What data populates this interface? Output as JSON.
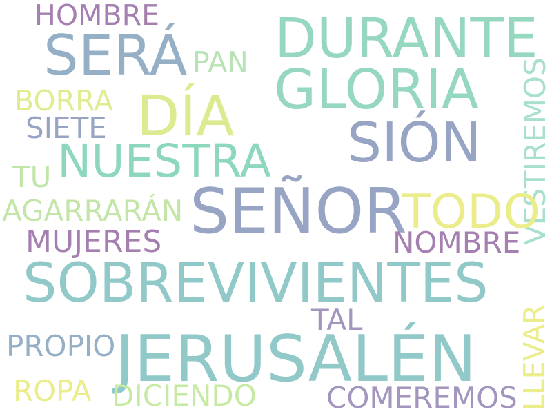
{
  "words": {
    "hombre": {
      "text": "HOMBRE",
      "color": "#a57fb0"
    },
    "sera": {
      "text": "SERÁ",
      "color": "#95b0c6"
    },
    "durante": {
      "text": "DURANTE",
      "color": "#96d8bf"
    },
    "pan": {
      "text": "PAN",
      "color": "#b9e3b7"
    },
    "gloria": {
      "text": "GLORIA",
      "color": "#96d8bf"
    },
    "vestiremos": {
      "text": "VESTIREMOS",
      "color": "#a9e0cd"
    },
    "borra": {
      "text": "BORRA",
      "color": "#e1ec91"
    },
    "dia": {
      "text": "DÍA",
      "color": "#dbeb91"
    },
    "siete": {
      "text": "SIETE",
      "color": "#98a4c4"
    },
    "sion": {
      "text": "SIÓN",
      "color": "#98a4c4"
    },
    "nuestra": {
      "text": "NUESTRA",
      "color": "#8dd8bd"
    },
    "tu": {
      "text": "TU",
      "color": "#c0e6a9"
    },
    "senor": {
      "text": "SEÑOR",
      "color": "#98a4c4"
    },
    "todo": {
      "text": "TODO",
      "color": "#eaed8a"
    },
    "agarraran": {
      "text": "AGARRARÁN",
      "color": "#c3e6a8"
    },
    "mujeres": {
      "text": "MUJERES",
      "color": "#a57fb0"
    },
    "nombre": {
      "text": "NOMBRE",
      "color": "#a57fb0"
    },
    "sobrevivientes": {
      "text": "SOBREVIVIENTES",
      "color": "#91c9c8"
    },
    "llevar": {
      "text": "LLEVAR",
      "color": "#eaed8a"
    },
    "tal": {
      "text": "TAL",
      "color": "#a395bd"
    },
    "propio": {
      "text": "PROPIO",
      "color": "#95b0c6"
    },
    "jerusalen": {
      "text": "JERUSALÉN",
      "color": "#91c9c8"
    },
    "ropa": {
      "text": "ROPA",
      "color": "#eaed8a"
    },
    "diciendo": {
      "text": "DICIENDO",
      "color": "#c6e9a3"
    },
    "comeremos": {
      "text": "COMEREMOS",
      "color": "#a395bd"
    }
  }
}
